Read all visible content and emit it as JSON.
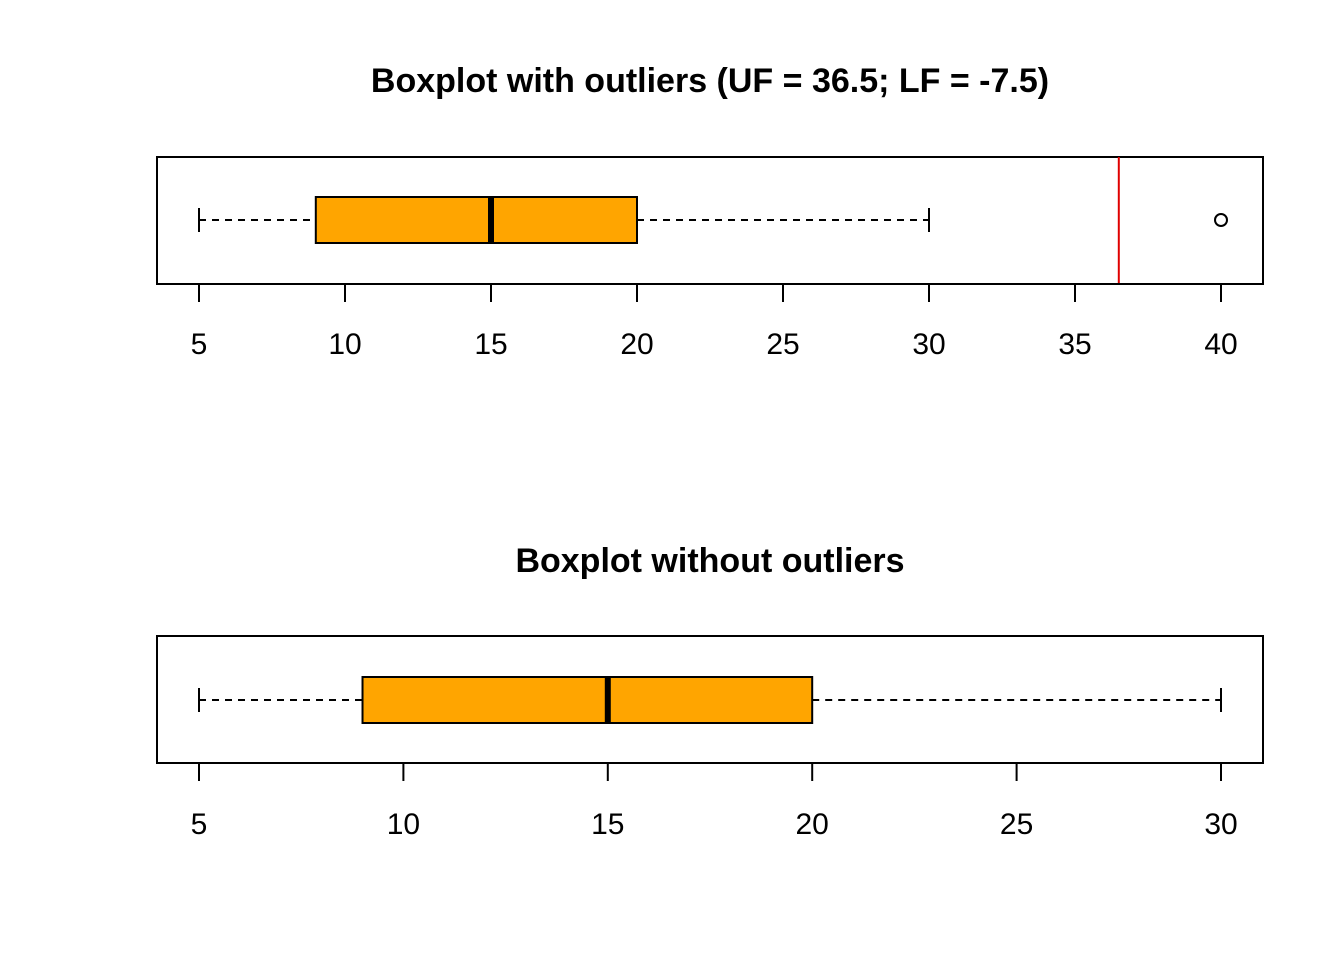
{
  "chart_data": [
    {
      "type": "boxplot",
      "orientation": "horizontal",
      "title": "Boxplot with outliers (UF = 36.5; LF = -7.5)",
      "xlabel": "",
      "ylabel": "",
      "xlim": [
        5,
        40
      ],
      "ticks": [
        5,
        10,
        15,
        20,
        25,
        30,
        35,
        40
      ],
      "tick_labels": [
        "5",
        "10",
        "15",
        "20",
        "25",
        "30",
        "35",
        "40"
      ],
      "grid": false,
      "box": {
        "whisker_low": 5,
        "q1": 9,
        "median": 15,
        "q3": 20,
        "whisker_high": 30,
        "outliers": [
          40
        ]
      },
      "reference_line": {
        "value": 36.5,
        "color": "#e00000"
      },
      "colors": {
        "box_fill": "#ffa500",
        "stroke": "#000000"
      }
    },
    {
      "type": "boxplot",
      "orientation": "horizontal",
      "title": "Boxplot without outliers",
      "xlabel": "",
      "ylabel": "",
      "xlim": [
        5,
        30
      ],
      "ticks": [
        5,
        10,
        15,
        20,
        25,
        30
      ],
      "tick_labels": [
        "5",
        "10",
        "15",
        "20",
        "25",
        "30"
      ],
      "grid": false,
      "box": {
        "whisker_low": 5,
        "q1": 9,
        "median": 15,
        "q3": 20,
        "whisker_high": 30,
        "outliers": []
      },
      "colors": {
        "box_fill": "#ffa500",
        "stroke": "#000000"
      }
    }
  ]
}
